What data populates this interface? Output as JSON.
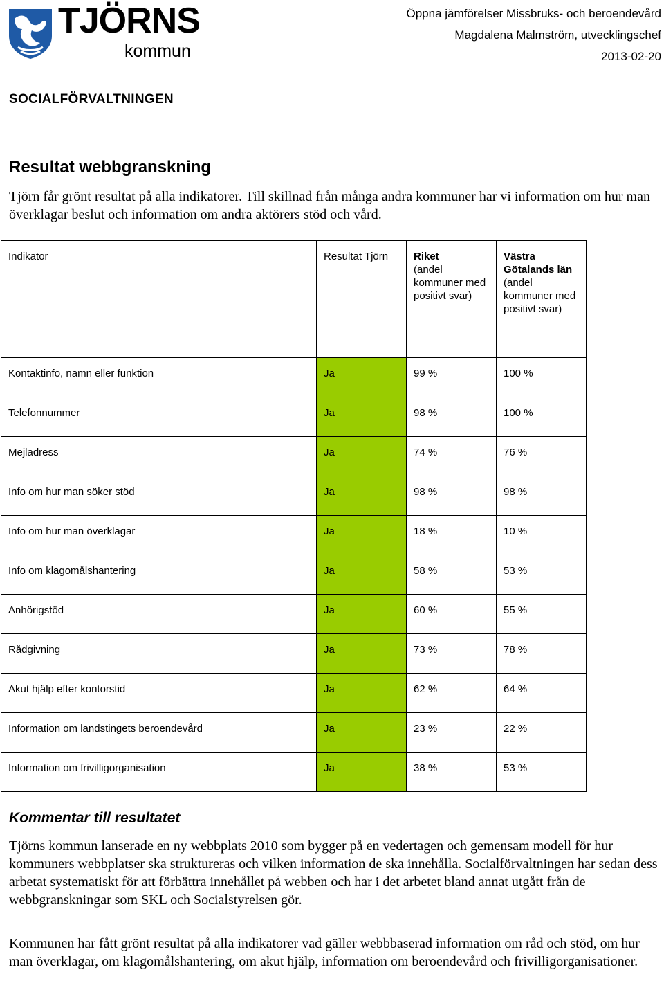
{
  "logo": {
    "name": "TJÖRNS",
    "sub": "kommun",
    "icon": "municipal-shield-icon"
  },
  "header": {
    "line1": "Öppna jämförelser Missbruks- och beroendevård",
    "line2": "Magdalena Malmström, utvecklingschef",
    "date": "2013-02-20"
  },
  "department": "SOCIALFÖRVALTNINGEN",
  "section1": {
    "title": "Resultat webbgranskning",
    "intro": "Tjörn får grönt resultat på alla indikatorer. Till skillnad från många andra kommuner har vi information om hur man överklagar beslut och information om andra aktörers stöd och vård."
  },
  "table": {
    "headers": {
      "indicator": "Indikator",
      "tjorn": "Resultat Tjörn",
      "riket_title": "Riket",
      "riket_sub": "(andel kommuner med positivt svar)",
      "vg_title": "Västra Götalands län",
      "vg_sub": "(andel kommuner med positivt svar)"
    },
    "highlight_color": "#99cc00",
    "rows": [
      {
        "indicator": "Kontaktinfo, namn eller funktion",
        "tjorn": "Ja",
        "riket": "99 %",
        "vg": "100 %"
      },
      {
        "indicator": "Telefonnummer",
        "tjorn": "Ja",
        "riket": "98 %",
        "vg": "100 %"
      },
      {
        "indicator": "Mejladress",
        "tjorn": "Ja",
        "riket": "74 %",
        "vg": "76 %"
      },
      {
        "indicator": "Info om hur man söker stöd",
        "tjorn": "Ja",
        "riket": "98 %",
        "vg": "98 %"
      },
      {
        "indicator": "Info om hur man överklagar",
        "tjorn": "Ja",
        "riket": "18 %",
        "vg": "10 %"
      },
      {
        "indicator": "Info om klagomålshantering",
        "tjorn": "Ja",
        "riket": "58 %",
        "vg": "53 %"
      },
      {
        "indicator": "Anhörigstöd",
        "tjorn": "Ja",
        "riket": "60 %",
        "vg": "55 %"
      },
      {
        "indicator": "Rådgivning",
        "tjorn": "Ja",
        "riket": "73 %",
        "vg": "78 %"
      },
      {
        "indicator": "Akut hjälp efter kontorstid",
        "tjorn": "Ja",
        "riket": "62 %",
        "vg": "64 %"
      },
      {
        "indicator": "Information om landstingets beroendevård",
        "tjorn": "Ja",
        "riket": "23 %",
        "vg": "22 %"
      },
      {
        "indicator": "Information om frivilligorganisation",
        "tjorn": "Ja",
        "riket": "38 %",
        "vg": "53 %"
      }
    ]
  },
  "section2": {
    "title": "Kommentar till resultatet",
    "p1": "Tjörns kommun lanserade en ny webbplats 2010 som bygger på en vedertagen och gemensam modell för hur kommuners webbplatser ska struktureras och vilken information de ska innehålla. Socialförvaltningen har sedan dess arbetat systematiskt för att förbättra innehållet på webben och har i det arbetet bland annat utgått från de webbgranskningar som SKL och Socialstyrelsen gör.",
    "p2": "Kommunen har fått grönt resultat på alla indikatorer vad gäller webbbaserad information om råd och stöd, om hur man överklagar, om klagomålshantering, om akut hjälp, information om beroendevård och frivilligorganisationer."
  }
}
